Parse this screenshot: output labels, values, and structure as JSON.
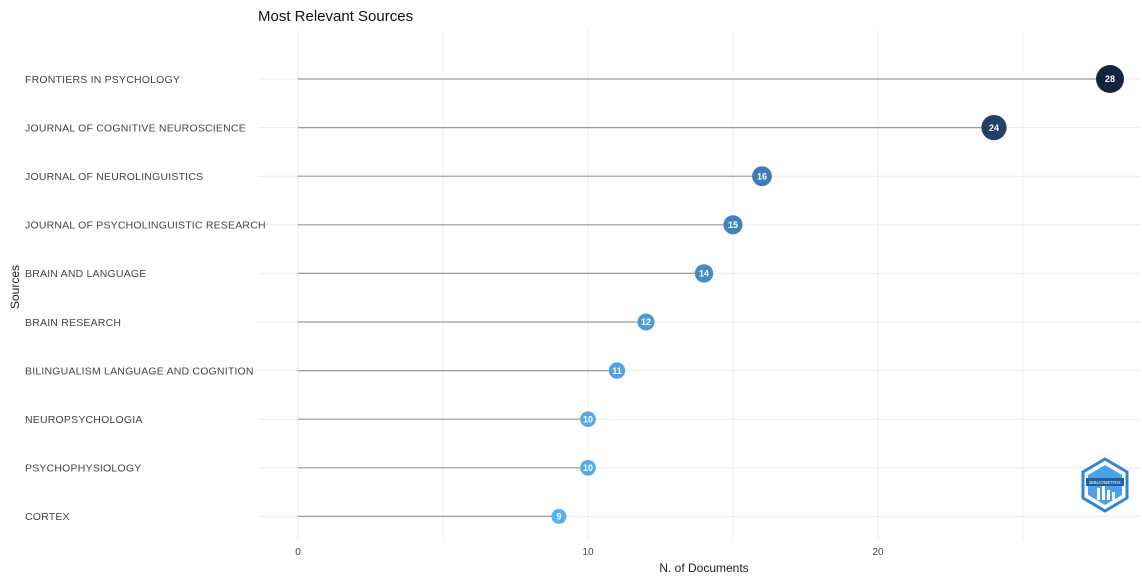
{
  "chart_data": {
    "type": "lollipop",
    "title": "Most Relevant Sources",
    "xlabel": "N. of Documents",
    "ylabel": "Sources",
    "xlim": [
      0,
      29
    ],
    "xticks": [
      0,
      10,
      20
    ],
    "grid": true,
    "categories": [
      "FRONTIERS IN PSYCHOLOGY",
      "JOURNAL OF COGNITIVE NEUROSCIENCE",
      "JOURNAL OF NEUROLINGUISTICS",
      "JOURNAL OF PSYCHOLINGUISTIC RESEARCH",
      "BRAIN AND LANGUAGE",
      "BRAIN RESEARCH",
      "BILINGUALISM LANGUAGE AND COGNITION",
      "NEUROPSYCHOLOGIA",
      "PSYCHOPHYSIOLOGY",
      "CORTEX"
    ],
    "values": [
      28,
      24,
      16,
      15,
      14,
      12,
      11,
      10,
      10,
      9
    ],
    "colors": {
      "high": "#13243f",
      "low": "#56b1f7",
      "stem": "#9a9a9a",
      "grid": "#ebebeb"
    }
  },
  "logo": {
    "text": "BIBLIOMETRIX"
  }
}
